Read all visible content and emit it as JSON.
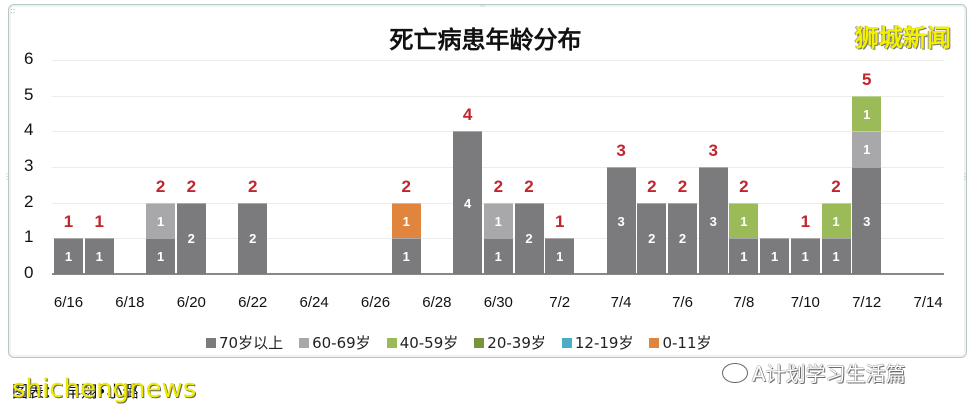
{
  "title": "死亡病患年龄分布",
  "watermarks": {
    "top_right": "狮城新闻",
    "bottom_left": "shichengnews",
    "bottom_right": "A计划学习生活篇"
  },
  "caption": "图表：    早翔•小璐",
  "colors": {
    "70+": "#7b7b7d",
    "60-69": "#a8a8aa",
    "40-59": "#9bbb59",
    "20-39": "#77933c",
    "12-19": "#4bacc6",
    "0-11": "#e0843e",
    "total_label": "#c0262d"
  },
  "chart_data": {
    "type": "bar",
    "stacked": true,
    "title": "死亡病患年龄分布",
    "xlabel": "",
    "ylabel": "",
    "ylim": [
      0,
      6
    ],
    "yticks": [
      0,
      1,
      2,
      3,
      4,
      5,
      6
    ],
    "grid": true,
    "legend_position": "bottom",
    "x_tick_labels": [
      "6/16",
      "6/18",
      "6/20",
      "6/22",
      "6/24",
      "6/26",
      "6/28",
      "6/30",
      "7/2",
      "7/4",
      "7/6",
      "7/8",
      "7/10",
      "7/12",
      "7/14"
    ],
    "categories": [
      "6/16",
      "6/17",
      "6/18",
      "6/19",
      "6/20",
      "6/21",
      "6/22",
      "6/23",
      "6/24",
      "6/25",
      "6/26",
      "6/27",
      "6/28",
      "6/29",
      "6/30",
      "7/1",
      "7/2",
      "7/3",
      "7/4",
      "7/5",
      "7/6",
      "7/7",
      "7/8",
      "7/9",
      "7/10",
      "7/11",
      "7/12",
      "7/13",
      "7/14"
    ],
    "series": [
      {
        "name": "70岁以上",
        "color": "#7b7b7d",
        "values": [
          1,
          1,
          0,
          1,
          2,
          0,
          2,
          0,
          0,
          0,
          0,
          1,
          0,
          4,
          1,
          2,
          1,
          0,
          3,
          2,
          2,
          3,
          1,
          1,
          1,
          1,
          3,
          0,
          0
        ]
      },
      {
        "name": "60-69岁",
        "color": "#a8a8aa",
        "values": [
          0,
          0,
          0,
          1,
          0,
          0,
          0,
          0,
          0,
          0,
          0,
          0,
          0,
          0,
          1,
          0,
          0,
          0,
          0,
          0,
          0,
          0,
          0,
          0,
          0,
          0,
          1,
          0,
          0
        ]
      },
      {
        "name": "40-59岁",
        "color": "#9bbb59",
        "values": [
          0,
          0,
          0,
          0,
          0,
          0,
          0,
          0,
          0,
          0,
          0,
          0,
          0,
          0,
          0,
          0,
          0,
          0,
          0,
          0,
          0,
          0,
          1,
          0,
          0,
          1,
          1,
          0,
          0
        ]
      },
      {
        "name": "20-39岁",
        "color": "#77933c",
        "values": [
          0,
          0,
          0,
          0,
          0,
          0,
          0,
          0,
          0,
          0,
          0,
          0,
          0,
          0,
          0,
          0,
          0,
          0,
          0,
          0,
          0,
          0,
          0,
          0,
          0,
          0,
          0,
          0,
          0
        ]
      },
      {
        "name": "12-19岁",
        "color": "#4bacc6",
        "values": [
          0,
          0,
          0,
          0,
          0,
          0,
          0,
          0,
          0,
          0,
          0,
          0,
          0,
          0,
          0,
          0,
          0,
          0,
          0,
          0,
          0,
          0,
          0,
          0,
          0,
          0,
          0,
          0,
          0
        ]
      },
      {
        "name": "0-11岁",
        "color": "#e0843e",
        "values": [
          0,
          0,
          0,
          0,
          0,
          0,
          0,
          0,
          0,
          0,
          0,
          1,
          0,
          0,
          0,
          0,
          0,
          0,
          0,
          0,
          0,
          0,
          0,
          0,
          0,
          0,
          0,
          0,
          0
        ]
      }
    ],
    "totals": [
      1,
      1,
      null,
      2,
      2,
      null,
      2,
      null,
      null,
      null,
      null,
      2,
      null,
      4,
      2,
      2,
      1,
      null,
      3,
      2,
      2,
      3,
      2,
      null,
      1,
      2,
      5,
      null,
      null
    ]
  },
  "legend": [
    {
      "label": "70岁以上",
      "color": "#7b7b7d"
    },
    {
      "label": "60-69岁",
      "color": "#a8a8aa"
    },
    {
      "label": "40-59岁",
      "color": "#9bbb59"
    },
    {
      "label": "20-39岁",
      "color": "#77933c"
    },
    {
      "label": "12-19岁",
      "color": "#4bacc6"
    },
    {
      "label": "0-11岁",
      "color": "#e0843e"
    }
  ]
}
